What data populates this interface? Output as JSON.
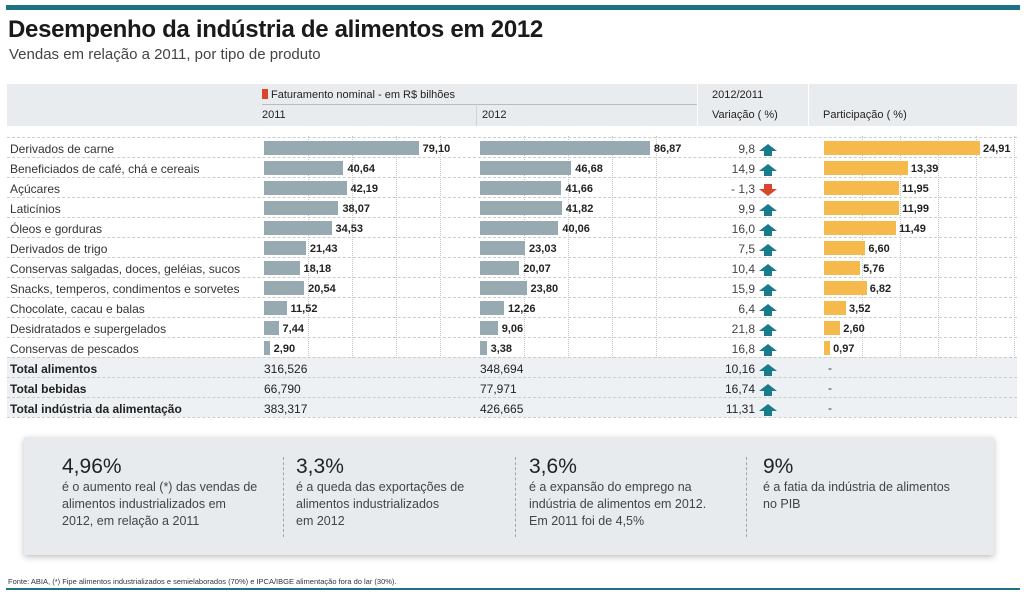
{
  "title": "Desempenho da indústria de alimentos em 2012",
  "subtitle": "Vendas em relação a 2011, por tipo de produto",
  "header": {
    "legend": "Faturamento nominal - em R$ bilhões",
    "col2011": "2011",
    "col2012": "2012",
    "variacao_top": "2012/2011",
    "variacao": "Variação ( %)",
    "participacao": "Participação ( %)"
  },
  "colors": {
    "accent": "#1d7283",
    "bar_revenue": "#98aab1",
    "bar_share": "#f6b94b",
    "arrow_up": "#1a7b8c",
    "arrow_down": "#d9472b",
    "legend": "#d9472b"
  },
  "chart_data": {
    "type": "bar",
    "title": "Desempenho da indústria de alimentos em 2012",
    "subtitle": "Vendas em relação a 2011, por tipo de produto",
    "categories": [
      "Derivados de carne",
      "Beneficiados de café, chá e cereais",
      "Açúcares",
      "Laticínios",
      "Óleos e gorduras",
      "Derivados de trigo",
      "Conservas salgadas, doces, geléias, sucos",
      "Snacks, temperos, condimentos e sorvetes",
      "Chocolate, cacau e balas",
      "Desidratados e supergelados",
      "Conservas de pescados"
    ],
    "series": [
      {
        "name": "2011",
        "unit": "R$ bilhões",
        "values": [
          79.1,
          40.64,
          42.19,
          38.07,
          34.53,
          21.43,
          18.18,
          20.54,
          11.52,
          7.44,
          2.9
        ],
        "labels": [
          "79,10",
          "40,64",
          "42,19",
          "38,07",
          "34,53",
          "21,43",
          "18,18",
          "20,54",
          "11,52",
          "7,44",
          "2,90"
        ]
      },
      {
        "name": "2012",
        "unit": "R$ bilhões",
        "values": [
          86.87,
          46.68,
          41.66,
          41.82,
          40.06,
          23.03,
          20.07,
          23.8,
          12.26,
          9.06,
          3.38
        ],
        "labels": [
          "86,87",
          "46,68",
          "41,66",
          "41,82",
          "40,06",
          "23,03",
          "20,07",
          "23,80",
          "12,26",
          "9,06",
          "3,38"
        ]
      },
      {
        "name": "Variação 2012/2011 (%)",
        "values": [
          9.8,
          14.9,
          -1.3,
          9.9,
          16.0,
          7.5,
          10.4,
          15.9,
          6.4,
          21.8,
          16.8
        ],
        "labels": [
          "9,8",
          "14,9",
          "- 1,3",
          "9,9",
          "16,0",
          "7,5",
          "10,4",
          "15,9",
          "6,4",
          "21,8",
          "16,8"
        ]
      },
      {
        "name": "Participação (%)",
        "values": [
          24.91,
          13.39,
          11.95,
          11.99,
          11.49,
          6.6,
          5.76,
          6.82,
          3.52,
          2.6,
          0.97
        ],
        "labels": [
          "24,91",
          "13,39",
          "11,95",
          "11,99",
          "11,49",
          "6,60",
          "5,76",
          "6,82",
          "3,52",
          "2,60",
          "0,97"
        ]
      }
    ],
    "revenue_range": [
      0,
      90
    ],
    "share_range": [
      0,
      25
    ],
    "totals": [
      {
        "label": "Total alimentos",
        "v2011": "316,526",
        "v2012": "348,694",
        "variacao": "10,16",
        "participacao": "-"
      },
      {
        "label": "Total bebidas",
        "v2011": "66,790",
        "v2012": "77,971",
        "variacao": "16,74",
        "participacao": "-"
      },
      {
        "label": "Total indústria da alimentação",
        "v2011": "383,317",
        "v2012": "426,665",
        "variacao": "11,31",
        "participacao": "-"
      }
    ],
    "grid": true
  },
  "facts": [
    {
      "value": "4,96%",
      "lines": [
        "é o aumento real (*) das vendas de",
        "alimentos industrializados em",
        "2012, em relação a 2011"
      ]
    },
    {
      "value": "3,3%",
      "lines": [
        "é a queda das exportações de",
        "alimentos industrializados",
        "em 2012"
      ]
    },
    {
      "value": "3,6%",
      "lines": [
        "é a expansão do emprego na",
        "indústria de alimentos em 2012.",
        "Em 2011 foi de 4,5%"
      ]
    },
    {
      "value": "9%",
      "lines": [
        "é a fatia da indústria de alimentos",
        "no PIB"
      ]
    }
  ],
  "source": "Fonte: ABIA, (*) Fipe alimentos industrializados e semielaborados (70%) e IPCA/IBGE alimentação fora do lar (30%)."
}
